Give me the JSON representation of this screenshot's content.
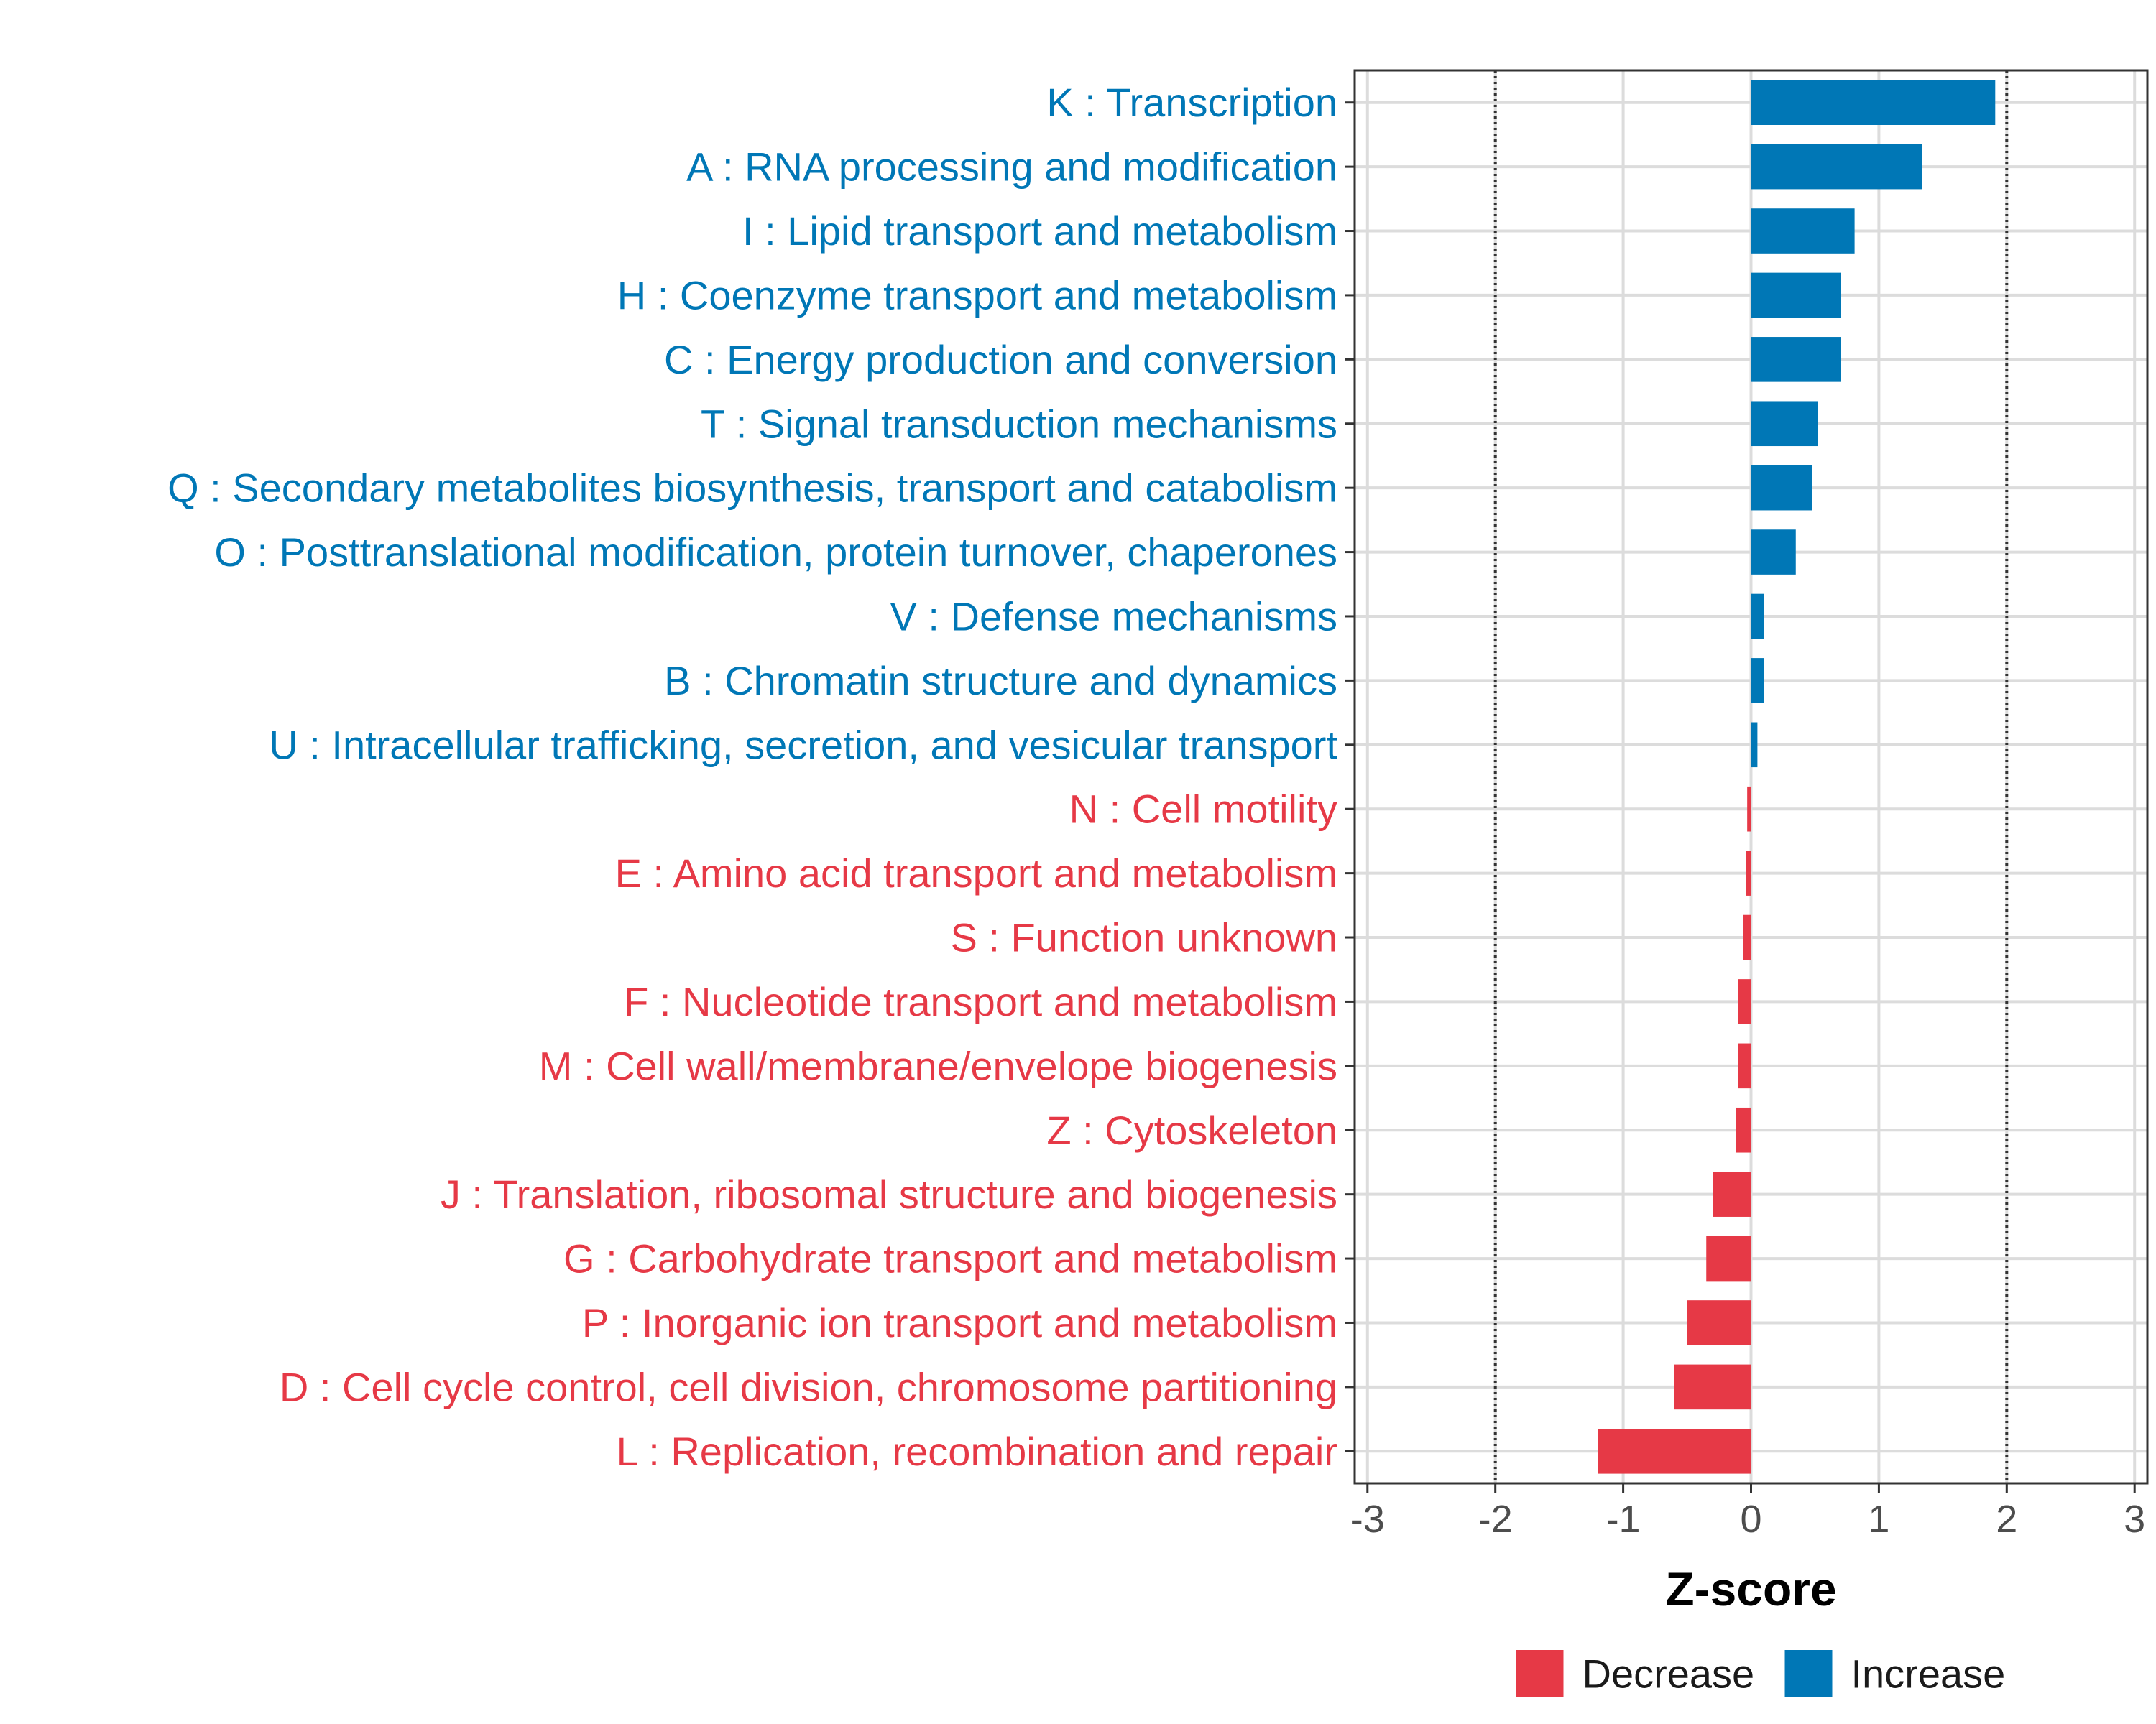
{
  "chart_data": {
    "type": "bar",
    "orientation": "horizontal",
    "title": "",
    "xlabel": "Z-score",
    "ylabel": "",
    "xlim": [
      -3.1,
      3.1
    ],
    "xticks": [
      -3,
      -2,
      -1,
      0,
      1,
      2,
      3
    ],
    "xtick_labels": [
      "-3",
      "-2",
      "-1",
      "0",
      "1",
      "2",
      "3"
    ],
    "reference_lines": [
      -2,
      2
    ],
    "grid": true,
    "colors": {
      "Decrease": "#E63946",
      "Increase": "#0077B6"
    },
    "categories": [
      "K : Transcription",
      "A : RNA processing and modification",
      "I : Lipid transport and metabolism",
      "H : Coenzyme transport and metabolism",
      "C : Energy production and conversion",
      "T : Signal transduction mechanisms",
      "Q : Secondary metabolites biosynthesis, transport and catabolism",
      "O : Posttranslational modification, protein turnover, chaperones",
      "V : Defense mechanisms",
      "B : Chromatin structure and dynamics",
      "U : Intracellular trafficking, secretion, and vesicular transport",
      "N : Cell motility",
      "E : Amino acid transport and metabolism",
      "S : Function unknown",
      "F : Nucleotide transport and metabolism",
      "M : Cell wall/membrane/envelope biogenesis",
      "Z : Cytoskeleton",
      "J : Translation, ribosomal structure and biogenesis",
      "G : Carbohydrate transport and metabolism",
      "P : Inorganic ion transport and metabolism",
      "D : Cell cycle control, cell division, chromosome partitioning",
      "L : Replication, recombination and repair"
    ],
    "values": [
      1.91,
      1.34,
      0.81,
      0.7,
      0.7,
      0.52,
      0.48,
      0.35,
      0.1,
      0.1,
      0.05,
      -0.03,
      -0.04,
      -0.06,
      -0.1,
      -0.1,
      -0.12,
      -0.3,
      -0.35,
      -0.5,
      -0.6,
      -1.2
    ],
    "groups": [
      "Increase",
      "Increase",
      "Increase",
      "Increase",
      "Increase",
      "Increase",
      "Increase",
      "Increase",
      "Increase",
      "Increase",
      "Increase",
      "Decrease",
      "Decrease",
      "Decrease",
      "Decrease",
      "Decrease",
      "Decrease",
      "Decrease",
      "Decrease",
      "Decrease",
      "Decrease",
      "Decrease"
    ],
    "legend": {
      "position": "bottom",
      "entries": [
        {
          "label": "Decrease",
          "color": "#E63946"
        },
        {
          "label": "Increase",
          "color": "#0077B6"
        }
      ]
    }
  }
}
